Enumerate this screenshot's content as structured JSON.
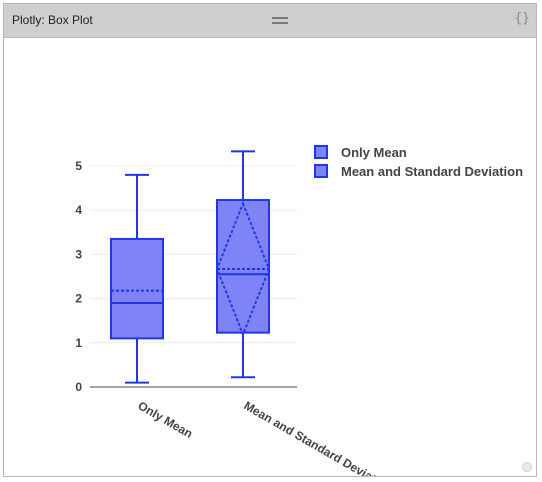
{
  "window": {
    "title": "Plotly: Box Plot",
    "code_icon": "{}",
    "drag_icon": "drag-handle-icon",
    "resize_icon": "resize-grip-icon"
  },
  "chart_data": {
    "type": "box",
    "title": "",
    "xlabel": "",
    "ylabel": "",
    "ylim": [
      0,
      5.5
    ],
    "yticks": [
      0,
      1,
      2,
      3,
      4,
      5
    ],
    "grid": true,
    "legend_position": "top-right",
    "box_color": "#2236e8",
    "box_fill": "#7e84f5",
    "categories": [
      "Only Mean",
      "Mean and Standard Deviation"
    ],
    "series": [
      {
        "name": "Only Mean",
        "min": 0.1,
        "q1": 1.1,
        "median": 1.9,
        "q3": 3.35,
        "max": 4.8,
        "mean": 2.18,
        "show_sd": false
      },
      {
        "name": "Mean and Standard Deviation",
        "min": 0.22,
        "q1": 1.23,
        "median": 2.55,
        "q3": 4.23,
        "max": 5.33,
        "mean": 2.67,
        "sd": 1.48,
        "show_sd": true
      }
    ]
  }
}
